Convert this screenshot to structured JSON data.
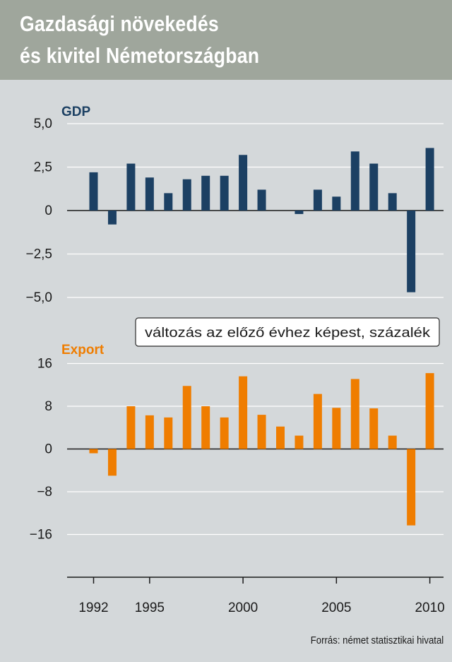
{
  "title": {
    "line1": "Gazdasági növekedés",
    "line2": "és kivitel Németországban"
  },
  "source": "Forrás: német statisztikai hivatal",
  "colors": {
    "gdp": "#1c4063",
    "export": "#ef7d00",
    "header_bg": "#9fa69c",
    "panel_bg": "#d4d8da"
  },
  "chart_data": [
    {
      "type": "bar",
      "series_label": "GDP",
      "years": [
        1992,
        1993,
        1994,
        1995,
        1996,
        1997,
        1998,
        1999,
        2000,
        2001,
        2002,
        2003,
        2004,
        2005,
        2006,
        2007,
        2008,
        2009,
        2010
      ],
      "values": [
        2.2,
        -0.8,
        2.7,
        1.9,
        1.0,
        1.8,
        2.0,
        2.0,
        3.2,
        1.2,
        0.0,
        -0.2,
        1.2,
        0.8,
        3.4,
        2.7,
        1.0,
        -4.7,
        3.6
      ],
      "ylim": [
        -5.0,
        5.0
      ],
      "yticks": [
        5.0,
        2.5,
        0,
        -2.5,
        -5.0
      ],
      "ytick_labels": [
        "5,0",
        "2,5",
        "0",
        "−2,5",
        "−5,0"
      ]
    },
    {
      "type": "bar",
      "series_label": "Export",
      "years": [
        1992,
        1993,
        1994,
        1995,
        1996,
        1997,
        1998,
        1999,
        2000,
        2001,
        2002,
        2003,
        2004,
        2005,
        2006,
        2007,
        2008,
        2009,
        2010
      ],
      "values": [
        -0.8,
        -5.0,
        8.0,
        6.3,
        5.9,
        11.8,
        8.0,
        5.9,
        13.6,
        6.4,
        4.2,
        2.5,
        10.3,
        7.7,
        13.1,
        7.6,
        2.5,
        -14.3,
        14.2
      ],
      "ylim": [
        -24,
        16
      ],
      "yticks": [
        16,
        8,
        0,
        -8,
        -16
      ],
      "ytick_labels": [
        "16",
        "8",
        "0",
        "−8",
        "−16"
      ],
      "annotation": "változás az előző évhez képest, százalék",
      "xtick_years": [
        1992,
        1995,
        2000,
        2005,
        2010
      ],
      "xtick_labels": [
        "1992",
        "1995",
        "2000",
        "2005",
        "2010"
      ]
    }
  ]
}
